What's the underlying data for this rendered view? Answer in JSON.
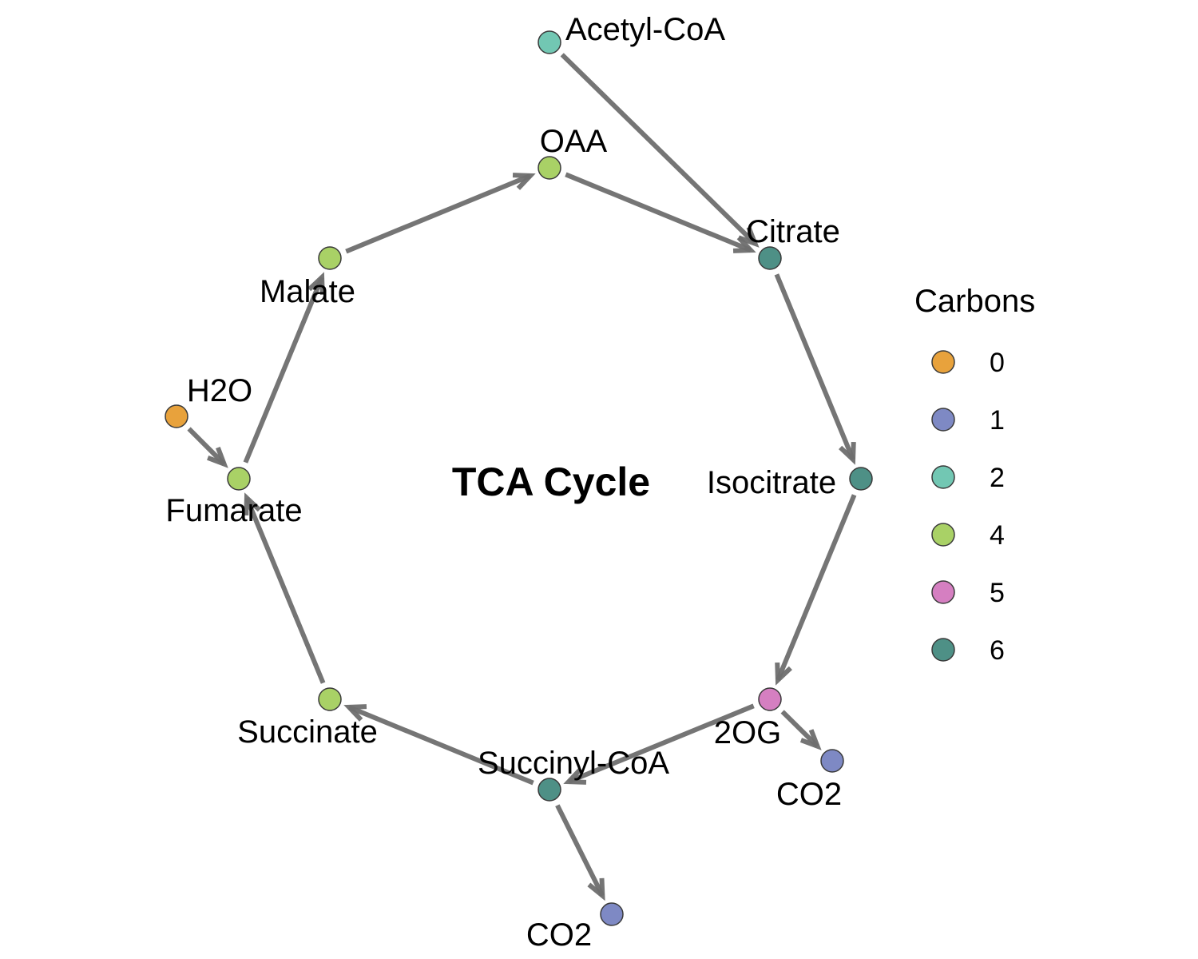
{
  "title": "TCA Cycle",
  "legend": {
    "title": "Carbons",
    "items": [
      {
        "label": "0",
        "color": "#E8A23C"
      },
      {
        "label": "1",
        "color": "#7E89C4"
      },
      {
        "label": "2",
        "color": "#72C7B3"
      },
      {
        "label": "4",
        "color": "#A9D166"
      },
      {
        "label": "5",
        "color": "#D57FC1"
      },
      {
        "label": "6",
        "color": "#4E9086"
      }
    ]
  },
  "nodes": [
    {
      "id": "acetylcoa",
      "label": "Acetyl-CoA",
      "carbons": "2"
    },
    {
      "id": "oaa",
      "label": "OAA",
      "carbons": "4"
    },
    {
      "id": "citrate",
      "label": "Citrate",
      "carbons": "6"
    },
    {
      "id": "isocitrate",
      "label": "Isocitrate",
      "carbons": "6"
    },
    {
      "id": "2og",
      "label": "2OG",
      "carbons": "5"
    },
    {
      "id": "co2a",
      "label": "CO2",
      "carbons": "1"
    },
    {
      "id": "succinylcoa",
      "label": "Succinyl-CoA",
      "carbons": "6"
    },
    {
      "id": "co2b",
      "label": "CO2",
      "carbons": "1"
    },
    {
      "id": "succinate",
      "label": "Succinate",
      "carbons": "4"
    },
    {
      "id": "fumarate",
      "label": "Fumarate",
      "carbons": "4"
    },
    {
      "id": "h2o",
      "label": "H2O",
      "carbons": "0"
    },
    {
      "id": "malate",
      "label": "Malate",
      "carbons": "4"
    }
  ],
  "edges": [
    {
      "from": "acetylcoa",
      "to": "citrate"
    },
    {
      "from": "oaa",
      "to": "citrate"
    },
    {
      "from": "citrate",
      "to": "isocitrate"
    },
    {
      "from": "isocitrate",
      "to": "2og"
    },
    {
      "from": "2og",
      "to": "co2a"
    },
    {
      "from": "2og",
      "to": "succinylcoa"
    },
    {
      "from": "succinylcoa",
      "to": "co2b"
    },
    {
      "from": "succinylcoa",
      "to": "succinate"
    },
    {
      "from": "succinate",
      "to": "fumarate"
    },
    {
      "from": "h2o",
      "to": "fumarate"
    },
    {
      "from": "fumarate",
      "to": "malate"
    },
    {
      "from": "malate",
      "to": "oaa"
    }
  ]
}
